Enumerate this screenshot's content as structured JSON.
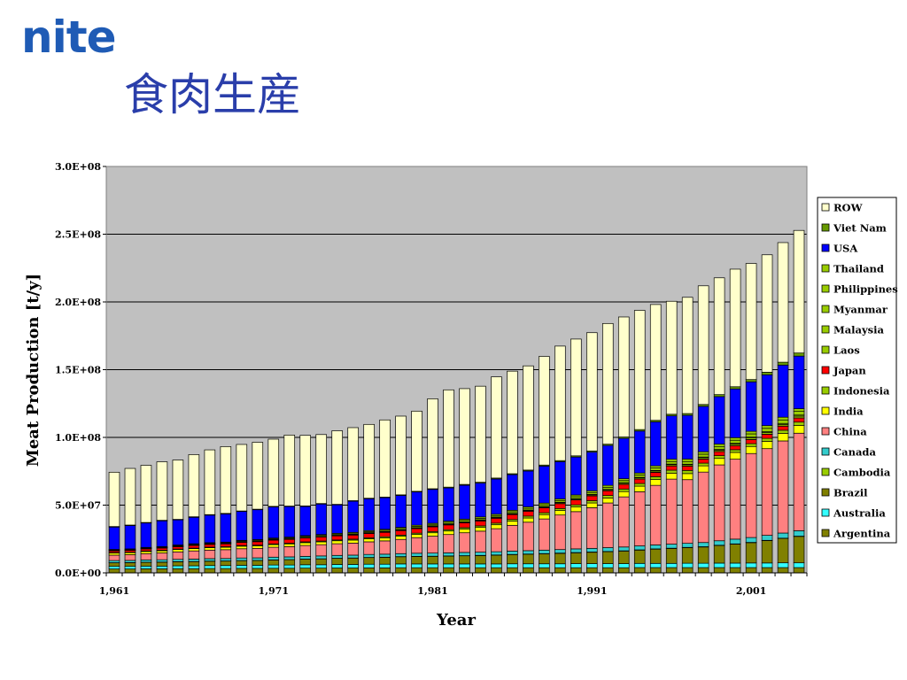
{
  "logo_text": "nite",
  "slide_title": "食肉生産",
  "chart_data": {
    "type": "bar",
    "stacked": true,
    "xlabel": "Year",
    "ylabel": "Meat Production [t/y]",
    "ylim": [
      0,
      300000000
    ],
    "yticks": [
      "0.0E+00",
      "5.0E+07",
      "1.0E+08",
      "1.5E+08",
      "2.0E+08",
      "2.5E+08",
      "3.0E+08"
    ],
    "xtick_labels": [
      "1,961",
      "1,971",
      "1,981",
      "1,991",
      "2,001"
    ],
    "grid": true,
    "legend_position": "right",
    "categories": [
      1961,
      1962,
      1963,
      1964,
      1965,
      1966,
      1967,
      1968,
      1969,
      1970,
      1971,
      1972,
      1973,
      1974,
      1975,
      1976,
      1977,
      1978,
      1979,
      1980,
      1981,
      1982,
      1983,
      1984,
      1985,
      1986,
      1987,
      1988,
      1989,
      1990,
      1991,
      1992,
      1993,
      1994,
      1995,
      1996,
      1997,
      1998,
      1999,
      2000,
      2001,
      2002,
      2003,
      2004
    ],
    "series": [
      {
        "name": "Argentina",
        "color": "#808000",
        "values": [
          2900000.0,
          2900000.0,
          3000000.0,
          3000000.0,
          3100000.0,
          3100000.0,
          3200000.0,
          3200000.0,
          3300000.0,
          3300000.0,
          3400000.0,
          3400000.0,
          3500000.0,
          3500000.0,
          3600000.0,
          3600000.0,
          3700000.0,
          3700000.0,
          3800000.0,
          3800000.0,
          3800000.0,
          3800000.0,
          3800000.0,
          3800000.0,
          3800000.0,
          3800000.0,
          3800000.0,
          3800000.0,
          3800000.0,
          3800000.0,
          3800000.0,
          3800000.0,
          3800000.0,
          3900000.0,
          3900000.0,
          3900000.0,
          3900000.0,
          3900000.0,
          3900000.0,
          3900000.0,
          3900000.0,
          3900000.0,
          3900000.0,
          3900000.0
        ]
      },
      {
        "name": "Australia",
        "color": "#33ffff",
        "values": [
          1900000.0,
          1900000.0,
          2000000.0,
          2000000.0,
          2100000.0,
          2100000.0,
          2200000.0,
          2200000.0,
          2300000.0,
          2300000.0,
          2400000.0,
          2400000.0,
          2500000.0,
          2500000.0,
          2600000.0,
          2600000.0,
          2700000.0,
          2700000.0,
          2800000.0,
          2800000.0,
          2800000.0,
          2800000.0,
          2800000.0,
          2800000.0,
          2800000.0,
          2900000.0,
          2900000.0,
          2900000.0,
          2900000.0,
          3000000.0,
          3000000.0,
          3000000.0,
          3000000.0,
          3100000.0,
          3100000.0,
          3100000.0,
          3200000.0,
          3200000.0,
          3300000.0,
          3300000.0,
          3400000.0,
          3400000.0,
          3500000.0,
          3500000.0
        ]
      },
      {
        "name": "Brazil",
        "color": "#808000",
        "values": [
          2600000.0,
          2700000.0,
          2800000.0,
          2900000.0,
          3000000.0,
          3100000.0,
          3200000.0,
          3300000.0,
          3400000.0,
          3500000.0,
          3700000.0,
          3900000.0,
          4100000.0,
          4300000.0,
          4500000.0,
          4700000.0,
          4900000.0,
          5100000.0,
          5300000.0,
          5500000.0,
          5600000.0,
          5800000.0,
          6000000.0,
          6200000.0,
          6500000.0,
          6800000.0,
          7100000.0,
          7400000.0,
          7700000.0,
          8000000.0,
          8400000.0,
          8800000.0,
          9300000.0,
          9800000.0,
          10500000.0,
          11000000.0,
          11500000.0,
          12000000.0,
          13000000.0,
          14000000.0,
          15000000.0,
          16500000.0,
          18000000.0,
          19500000.0
        ]
      },
      {
        "name": "Cambodia",
        "color": "#99cc00",
        "values": [
          100000.0,
          100000.0,
          100000.0,
          100000.0,
          100000.0,
          100000.0,
          100000.0,
          100000.0,
          100000.0,
          100000.0,
          100000.0,
          100000.0,
          100000.0,
          100000.0,
          100000.0,
          100000.0,
          100000.0,
          100000.0,
          100000.0,
          100000.0,
          100000.0,
          100000.0,
          100000.0,
          100000.0,
          100000.0,
          100000.0,
          100000.0,
          100000.0,
          200000.0,
          200000.0,
          200000.0,
          200000.0,
          200000.0,
          200000.0,
          200000.0,
          200000.0,
          200000.0,
          200000.0,
          200000.0,
          200000.0,
          200000.0,
          200000.0,
          200000.0,
          200000.0
        ]
      },
      {
        "name": "Canada",
        "color": "#33cccc",
        "values": [
          1600000.0,
          1600000.0,
          1700000.0,
          1700000.0,
          1700000.0,
          1800000.0,
          1800000.0,
          1800000.0,
          1900000.0,
          1900000.0,
          2000000.0,
          2000000.0,
          2000000.0,
          2100000.0,
          2100000.0,
          2100000.0,
          2200000.0,
          2200000.0,
          2200000.0,
          2300000.0,
          2300000.0,
          2300000.0,
          2400000.0,
          2400000.0,
          2400000.0,
          2500000.0,
          2500000.0,
          2600000.0,
          2600000.0,
          2700000.0,
          2700000.0,
          2800000.0,
          2800000.0,
          2900000.0,
          2900000.0,
          3000000.0,
          3000000.0,
          3100000.0,
          3300000.0,
          3500000.0,
          3600000.0,
          3700000.0,
          3800000.0,
          4000000.0
        ]
      },
      {
        "name": "China",
        "color": "#ff8080",
        "values": [
          4000000.0,
          4200000.0,
          4600000.0,
          5000000.0,
          5500000.0,
          6000000.0,
          6300000.0,
          6500000.0,
          6800000.0,
          7000000.0,
          7300000.0,
          7600000.0,
          8000000.0,
          8300000.0,
          8600000.0,
          8900000.0,
          9300000.0,
          9800000.0,
          10500000.0,
          11500000.0,
          12500000.0,
          13500000.0,
          14500000.0,
          15500000.0,
          17000000.0,
          19000000.0,
          21000000.0,
          23000000.0,
          25500000.0,
          27500000.0,
          30000000.0,
          33000000.0,
          37000000.0,
          40000000.0,
          44000000.0,
          48000000.0,
          47000000.0,
          52000000.0,
          56000000.0,
          59000000.0,
          62000000.0,
          64000000.0,
          68000000.0,
          72000000.0
        ]
      },
      {
        "name": "India",
        "color": "#ffff00",
        "values": [
          1500000.0,
          1500000.0,
          1600000.0,
          1600000.0,
          1700000.0,
          1700000.0,
          1800000.0,
          1800000.0,
          1900000.0,
          1900000.0,
          2000000.0,
          2000000.0,
          2100000.0,
          2100000.0,
          2200000.0,
          2200000.0,
          2300000.0,
          2300000.0,
          2400000.0,
          2400000.0,
          2500000.0,
          2600000.0,
          2700000.0,
          2800000.0,
          2900000.0,
          3000000.0,
          3100000.0,
          3200000.0,
          3300000.0,
          3400000.0,
          3500000.0,
          3700000.0,
          3900000.0,
          4100000.0,
          4300000.0,
          4400000.0,
          4500000.0,
          4600000.0,
          4800000.0,
          5000000.0,
          5200000.0,
          5400000.0,
          5600000.0,
          5800000.0
        ]
      },
      {
        "name": "Indonesia",
        "color": "#99cc00",
        "values": [
          400000.0,
          400000.0,
          400000.0,
          400000.0,
          400000.0,
          400000.0,
          400000.0,
          400000.0,
          500000.0,
          500000.0,
          500000.0,
          500000.0,
          600000.0,
          600000.0,
          600000.0,
          700000.0,
          700000.0,
          800000.0,
          800000.0,
          900000.0,
          900000.0,
          1000000.0,
          1100000.0,
          1100000.0,
          1200000.0,
          1300000.0,
          1400000.0,
          1400000.0,
          1500000.0,
          1600000.0,
          1700000.0,
          1800000.0,
          1900000.0,
          2000000.0,
          2100000.0,
          2200000.0,
          2300000.0,
          2000000.0,
          2000000.0,
          2000000.0,
          2100000.0,
          2200000.0,
          2300000.0,
          2400000.0
        ]
      },
      {
        "name": "Japan",
        "color": "#ff0000",
        "values": [
          1200000.0,
          1300000.0,
          1500000.0,
          1600000.0,
          1700000.0,
          1900000.0,
          2000000.0,
          2100000.0,
          2300000.0,
          2500000.0,
          2700000.0,
          2800000.0,
          2900000.0,
          3000000.0,
          3000000.0,
          3000000.0,
          3100000.0,
          3200000.0,
          3300000.0,
          3400000.0,
          3500000.0,
          3500000.0,
          3500000.0,
          3600000.0,
          3600000.0,
          3600000.0,
          3600000.0,
          3600000.0,
          3600000.0,
          3600000.0,
          3500000.0,
          3500000.0,
          3400000.0,
          3300000.0,
          3200000.0,
          3100000.0,
          3100000.0,
          3000000.0,
          3000000.0,
          3000000.0,
          3000000.0,
          3000000.0,
          3000000.0,
          3000000.0
        ]
      },
      {
        "name": "Laos",
        "color": "#99cc00",
        "values": [
          100000.0,
          100000.0,
          100000.0,
          100000.0,
          100000.0,
          100000.0,
          100000.0,
          100000.0,
          100000.0,
          100000.0,
          100000.0,
          100000.0,
          100000.0,
          100000.0,
          100000.0,
          100000.0,
          100000.0,
          100000.0,
          100000.0,
          100000.0,
          100000.0,
          100000.0,
          100000.0,
          100000.0,
          100000.0,
          100000.0,
          100000.0,
          100000.0,
          100000.0,
          100000.0,
          100000.0,
          100000.0,
          100000.0,
          100000.0,
          100000.0,
          100000.0,
          100000.0,
          100000.0,
          100000.0,
          100000.0,
          100000.0,
          100000.0,
          100000.0,
          100000.0
        ]
      },
      {
        "name": "Malaysia",
        "color": "#99cc00",
        "values": [
          100000.0,
          100000.0,
          100000.0,
          100000.0,
          100000.0,
          100000.0,
          100000.0,
          100000.0,
          200000.0,
          200000.0,
          200000.0,
          200000.0,
          200000.0,
          200000.0,
          200000.0,
          300000.0,
          300000.0,
          300000.0,
          300000.0,
          300000.0,
          400000.0,
          400000.0,
          400000.0,
          500000.0,
          500000.0,
          500000.0,
          500000.0,
          600000.0,
          600000.0,
          600000.0,
          700000.0,
          700000.0,
          800000.0,
          800000.0,
          900000.0,
          900000.0,
          1000000.0,
          1000000.0,
          1000000.0,
          1100000.0,
          1100000.0,
          1200000.0,
          1200000.0,
          1300000.0
        ]
      },
      {
        "name": "Myanmar",
        "color": "#99cc00",
        "values": [
          200000.0,
          200000.0,
          200000.0,
          200000.0,
          200000.0,
          200000.0,
          200000.0,
          200000.0,
          200000.0,
          200000.0,
          200000.0,
          200000.0,
          200000.0,
          200000.0,
          200000.0,
          200000.0,
          300000.0,
          300000.0,
          300000.0,
          300000.0,
          300000.0,
          300000.0,
          300000.0,
          300000.0,
          300000.0,
          300000.0,
          300000.0,
          300000.0,
          300000.0,
          300000.0,
          300000.0,
          300000.0,
          300000.0,
          300000.0,
          400000.0,
          400000.0,
          400000.0,
          400000.0,
          500000.0,
          500000.0,
          600000.0,
          600000.0,
          700000.0,
          800000.0
        ]
      },
      {
        "name": "Philippines",
        "color": "#99cc00",
        "values": [
          400000.0,
          400000.0,
          400000.0,
          400000.0,
          500000.0,
          500000.0,
          500000.0,
          500000.0,
          600000.0,
          600000.0,
          600000.0,
          700000.0,
          700000.0,
          700000.0,
          800000.0,
          800000.0,
          800000.0,
          900000.0,
          900000.0,
          1000000.0,
          1000000.0,
          1100000.0,
          1100000.0,
          1100000.0,
          1100000.0,
          1200000.0,
          1200000.0,
          1300000.0,
          1300000.0,
          1400000.0,
          1400000.0,
          1500000.0,
          1600000.0,
          1700000.0,
          1800000.0,
          1900000.0,
          2000000.0,
          2100000.0,
          2200000.0,
          2300000.0,
          2400000.0,
          2500000.0,
          2600000.0,
          2700000.0
        ]
      },
      {
        "name": "Thailand",
        "color": "#99cc00",
        "values": [
          300000.0,
          300000.0,
          300000.0,
          300000.0,
          400000.0,
          400000.0,
          400000.0,
          400000.0,
          400000.0,
          500000.0,
          500000.0,
          500000.0,
          500000.0,
          600000.0,
          600000.0,
          600000.0,
          700000.0,
          700000.0,
          800000.0,
          800000.0,
          800000.0,
          900000.0,
          900000.0,
          1000000.0,
          1000000.0,
          1100000.0,
          1100000.0,
          1200000.0,
          1200000.0,
          1300000.0,
          1300000.0,
          1400000.0,
          1400000.0,
          1500000.0,
          1600000.0,
          1700000.0,
          1800000.0,
          1800000.0,
          1800000.0,
          1900000.0,
          1900000.0,
          2000000.0,
          2000000.0,
          2000000.0
        ]
      },
      {
        "name": "USA",
        "color": "#0000ff",
        "values": [
          16500000.0,
          17200000.0,
          18000000.0,
          19000000.0,
          18500000.0,
          19500000.0,
          20300000.0,
          20800000.0,
          21300000.0,
          22000000.0,
          23000000.0,
          22500000.0,
          21500000.0,
          22500000.0,
          21000000.0,
          23000000.0,
          23500000.0,
          23300000.0,
          23500000.0,
          24500000.0,
          25000000.0,
          24500000.0,
          25000000.0,
          25000000.0,
          26000000.0,
          26300000.0,
          26500000.0,
          27300000.0,
          27500000.0,
          28000000.0,
          28500000.0,
          29500000.0,
          29800000.0,
          31000000.0,
          32500000.0,
          32000000.0,
          32300000.0,
          33500000.0,
          35000000.0,
          36000000.0,
          36500000.0,
          37500000.0,
          38500000.0,
          38800000.0
        ]
      },
      {
        "name": "Viet Nam",
        "color": "#669900",
        "values": [
          400000.0,
          400000.0,
          400000.0,
          400000.0,
          400000.0,
          400000.0,
          400000.0,
          400000.0,
          400000.0,
          400000.0,
          400000.0,
          400000.0,
          400000.0,
          400000.0,
          400000.0,
          400000.0,
          400000.0,
          400000.0,
          500000.0,
          500000.0,
          500000.0,
          600000.0,
          600000.0,
          600000.0,
          700000.0,
          700000.0,
          700000.0,
          800000.0,
          800000.0,
          900000.0,
          900000.0,
          900000.0,
          1000000.0,
          1100000.0,
          1100000.0,
          1200000.0,
          1300000.0,
          1400000.0,
          1500000.0,
          1600000.0,
          1700000.0,
          1900000.0,
          2100000.0,
          2300000.0
        ]
      },
      {
        "name": "ROW",
        "color": "#ffffcc",
        "values": [
          40100000.0,
          41800000.0,
          42200000.0,
          43200000.0,
          43800000.0,
          45900000.0,
          47800000.0,
          49300000.0,
          49100000.0,
          49400000.0,
          49600000.0,
          52400000.0,
          52100000.0,
          50900000.0,
          54300000.0,
          53900000.0,
          54500000.0,
          57000000.0,
          58100000.0,
          59200000.0,
          66400000.0,
          71800000.0,
          70700000.0,
          70900000.0,
          74700000.0,
          75700000.0,
          76900000.0,
          80200000.0,
          84500000.0,
          86200000.0,
          87300000.0,
          89100000.0,
          88600000.0,
          88000000.0,
          85500000.0,
          83400000.0,
          85800000.0,
          87600000.0,
          86200000.0,
          86800000.0,
          85700000.0,
          86700000.0,
          88300000.0,
          90500000.0
        ]
      }
    ]
  }
}
